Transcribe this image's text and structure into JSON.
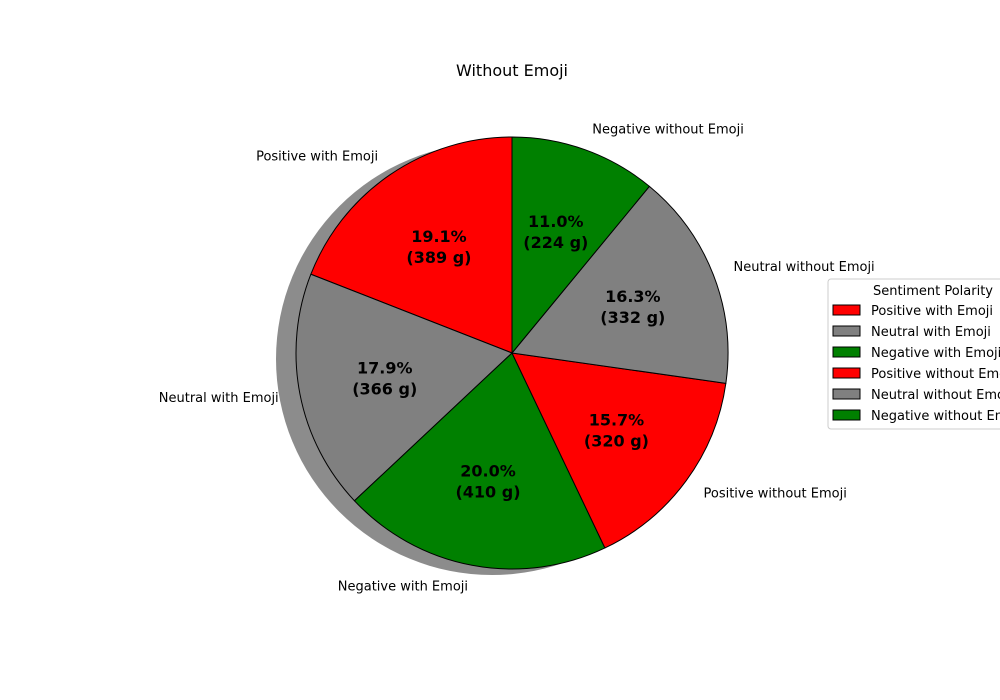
{
  "chart_data": {
    "type": "pie",
    "title": "Without Emoji",
    "slices": [
      {
        "label": "Positive with Emoji",
        "value": 389,
        "percent": "19.1%",
        "value_label": "(389 g)",
        "color": "#ff0000"
      },
      {
        "label": "Neutral with Emoji",
        "value": 366,
        "percent": "17.9%",
        "value_label": "(366 g)",
        "color": "#808080"
      },
      {
        "label": "Negative with Emoji",
        "value": 410,
        "percent": "20.0%",
        "value_label": "(410 g)",
        "color": "#008000"
      },
      {
        "label": "Positive without Emoji",
        "value": 320,
        "percent": "15.7%",
        "value_label": "(320 g)",
        "color": "#ff0000"
      },
      {
        "label": "Neutral without Emoji",
        "value": 332,
        "percent": "16.3%",
        "value_label": "(332 g)",
        "color": "#808080"
      },
      {
        "label": "Negative without Emoji",
        "value": 224,
        "percent": "11.0%",
        "value_label": "(224 g)",
        "color": "#008000"
      }
    ],
    "start_angle_deg": 90,
    "direction": "counterclockwise",
    "shadow": true,
    "legend": {
      "title": "Sentiment Polarity",
      "placement": "right",
      "entries": [
        "Positive with Emoji",
        "Neutral with Emoji",
        "Negative with Emoji",
        "Positive without Emoji",
        "Neutral without Emoji",
        "Negative without Emoji"
      ]
    }
  }
}
